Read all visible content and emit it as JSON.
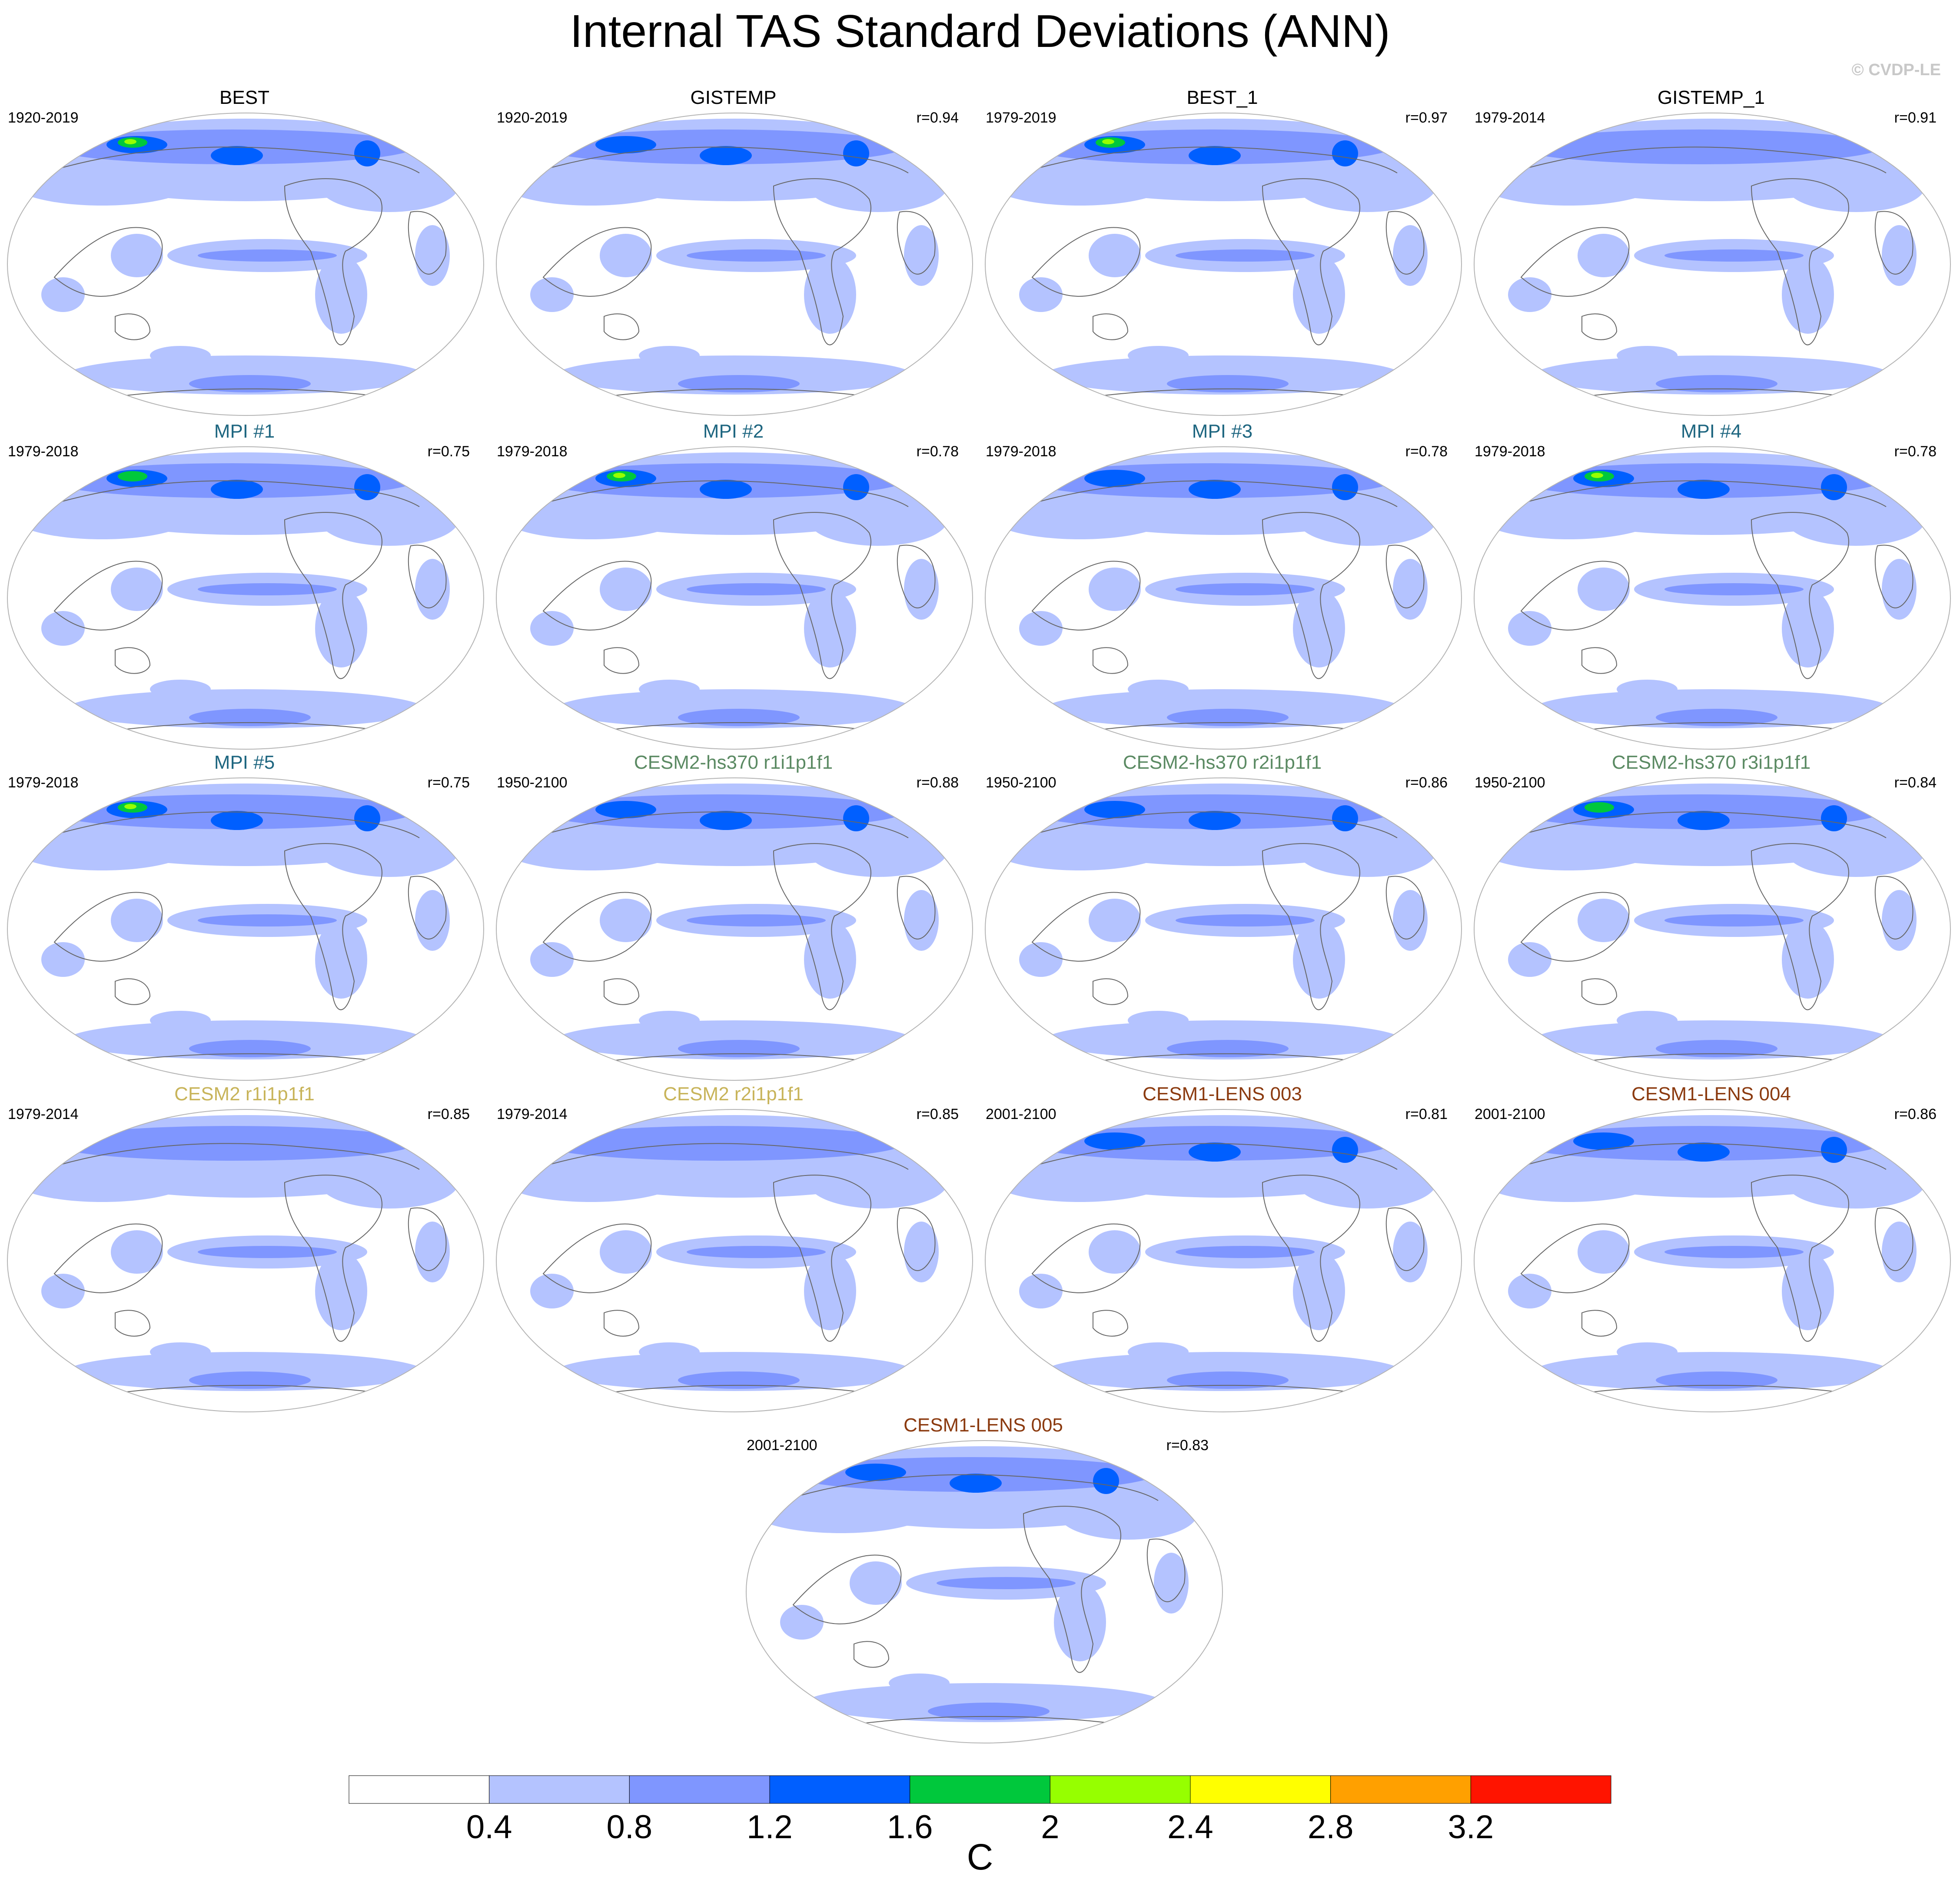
{
  "title": "Internal TAS Standard Deviations (ANN)",
  "copyright": "© CVDP-LE",
  "colors": {
    "dataset_obs": "#000000",
    "mpi": "#1e6680",
    "cesm2_hs370": "#5b8a63",
    "cesm2": "#c8b45a",
    "cesm1_lens": "#8b3a0f",
    "coastline": "#666666",
    "map_border": "#b4b4b4"
  },
  "colorbar": {
    "levels": [
      "0.4",
      "0.8",
      "1.2",
      "1.6",
      "2",
      "2.4",
      "2.8",
      "3.2"
    ],
    "colors": [
      "#ffffff",
      "#b4c3ff",
      "#7f96ff",
      "#005fff",
      "#00c83c",
      "#96ff00",
      "#ffff00",
      "#ffa000",
      "#ff1400"
    ],
    "units": "C"
  },
  "panels": [
    {
      "name": "BEST",
      "years": "1920-2019",
      "corr": "",
      "group": "dataset_obs",
      "max_band": 5
    },
    {
      "name": "GISTEMP",
      "years": "1920-2019",
      "corr": "r=0.94",
      "group": "dataset_obs",
      "max_band": 3
    },
    {
      "name": "BEST_1",
      "years": "1979-2019",
      "corr": "r=0.97",
      "group": "dataset_obs",
      "max_band": 5
    },
    {
      "name": "GISTEMP_1",
      "years": "1979-2014",
      "corr": "r=0.91",
      "group": "dataset_obs",
      "max_band": 2
    },
    {
      "name": "MPI #1",
      "years": "1979-2018",
      "corr": "r=0.75",
      "group": "mpi",
      "max_band": 4
    },
    {
      "name": "MPI #2",
      "years": "1979-2018",
      "corr": "r=0.78",
      "group": "mpi",
      "max_band": 5
    },
    {
      "name": "MPI #3",
      "years": "1979-2018",
      "corr": "r=0.78",
      "group": "mpi",
      "max_band": 3
    },
    {
      "name": "MPI #4",
      "years": "1979-2018",
      "corr": "r=0.78",
      "group": "mpi",
      "max_band": 5
    },
    {
      "name": "MPI #5",
      "years": "1979-2018",
      "corr": "r=0.75",
      "group": "mpi",
      "max_band": 5
    },
    {
      "name": "CESM2-hs370 r1i1p1f1",
      "years": "1950-2100",
      "corr": "r=0.88",
      "group": "cesm2_hs370",
      "max_band": 3
    },
    {
      "name": "CESM2-hs370 r2i1p1f1",
      "years": "1950-2100",
      "corr": "r=0.86",
      "group": "cesm2_hs370",
      "max_band": 3
    },
    {
      "name": "CESM2-hs370 r3i1p1f1",
      "years": "1950-2100",
      "corr": "r=0.84",
      "group": "cesm2_hs370",
      "max_band": 4
    },
    {
      "name": "CESM2 r1i1p1f1",
      "years": "1979-2014",
      "corr": "r=0.85",
      "group": "cesm2",
      "max_band": 2
    },
    {
      "name": "CESM2 r2i1p1f1",
      "years": "1979-2014",
      "corr": "r=0.85",
      "group": "cesm2",
      "max_band": 2
    },
    {
      "name": "CESM1-LENS 003",
      "years": "2001-2100",
      "corr": "r=0.81",
      "group": "cesm1_lens",
      "max_band": 3
    },
    {
      "name": "CESM1-LENS 004",
      "years": "2001-2100",
      "corr": "r=0.86",
      "group": "cesm1_lens",
      "max_band": 3
    },
    {
      "name": "CESM1-LENS 005",
      "years": "2001-2100",
      "corr": "r=0.83",
      "group": "cesm1_lens",
      "max_band": 3
    }
  ]
}
